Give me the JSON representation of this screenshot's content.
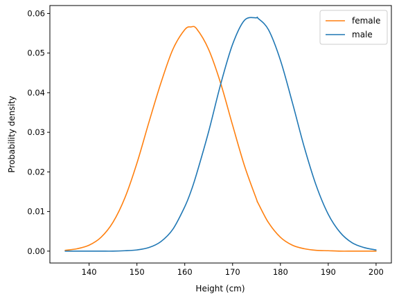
{
  "chart_data": {
    "type": "line",
    "xlabel": "Height (cm)",
    "ylabel": "Probability density",
    "xlim": [
      131.8,
      203.2
    ],
    "ylim": [
      -0.003,
      0.062
    ],
    "xticks": [
      140,
      150,
      160,
      170,
      180,
      190,
      200
    ],
    "yticks": [
      0.0,
      0.01,
      0.02,
      0.03,
      0.04,
      0.05,
      0.06
    ],
    "xtick_labels": [
      "140",
      "150",
      "160",
      "170",
      "180",
      "190",
      "200"
    ],
    "ytick_labels": [
      "0.00",
      "0.01",
      "0.02",
      "0.03",
      "0.04",
      "0.05",
      "0.06"
    ],
    "grid": false,
    "legend_position": "top-right",
    "x": [
      135,
      137.5,
      140,
      142.5,
      145,
      147.5,
      150,
      152.5,
      155,
      157.5,
      160,
      161.3,
      162.5,
      165,
      167.5,
      170,
      172.5,
      175,
      175.3,
      177.5,
      180,
      182.5,
      185,
      187.5,
      190,
      192.5,
      195,
      197.5,
      200
    ],
    "series": [
      {
        "name": "female",
        "color": "#ff7f0e",
        "values": [
          0.0002,
          0.0006,
          0.0015,
          0.0035,
          0.0073,
          0.0135,
          0.0222,
          0.0325,
          0.0424,
          0.0509,
          0.0559,
          0.0566,
          0.0561,
          0.0509,
          0.0424,
          0.0318,
          0.0215,
          0.0131,
          0.0122,
          0.0072,
          0.0035,
          0.0015,
          0.0006,
          0.0002,
          0.0001,
          0.0,
          0.0,
          0.0,
          0.0
        ]
      },
      {
        "name": "male",
        "color": "#1f77b4",
        "values": [
          0.0,
          0.0,
          0.0,
          0.0,
          0.0,
          0.0001,
          0.0003,
          0.0009,
          0.0024,
          0.0055,
          0.0112,
          0.0151,
          0.0196,
          0.0302,
          0.0421,
          0.0522,
          0.0583,
          0.0589,
          0.0588,
          0.0559,
          0.0482,
          0.0375,
          0.0262,
          0.0165,
          0.0093,
          0.0047,
          0.0021,
          0.0009,
          0.0003
        ]
      }
    ]
  }
}
